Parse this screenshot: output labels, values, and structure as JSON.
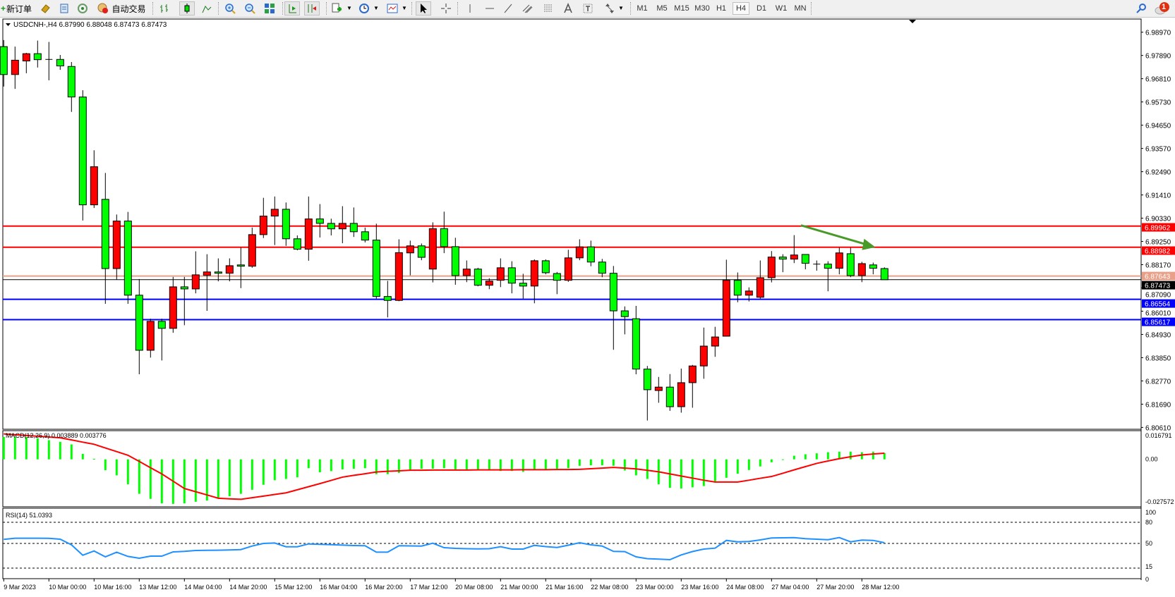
{
  "toolbar": {
    "new_order_label": "新订单",
    "auto_trading_label": "自动交易",
    "timeframes": [
      "M1",
      "M5",
      "M15",
      "M30",
      "H1",
      "H4",
      "D1",
      "W1",
      "MN"
    ],
    "active_timeframe": "H4",
    "notification_count": "1"
  },
  "chart": {
    "header": "USDCNH-,H4  6.87990 6.88048 6.87473 6.87473",
    "macd_label": "MACD(12,26,9) 0.003889 0.003776",
    "rsi_label": "RSI(14) 51.0393",
    "price_axis_labels": [
      "6.98970",
      "6.97890",
      "6.96810",
      "6.95730",
      "6.94650",
      "6.93570",
      "6.92490",
      "6.91410",
      "6.90330",
      "6.89250",
      "6.88170",
      "6.87090",
      "6.86010",
      "6.84930",
      "6.83850",
      "6.82770",
      "6.81690",
      "6.80610"
    ],
    "macd_axis_labels": [
      "0.016791",
      "0.00",
      "-0.027572"
    ],
    "rsi_axis_labels": [
      "100",
      "80",
      "50",
      "15",
      "0"
    ],
    "time_labels": [
      {
        "bar": 0,
        "text": "9 Mar 2023"
      },
      {
        "bar": 4,
        "text": "10 Mar 00:00"
      },
      {
        "bar": 8,
        "text": "10 Mar 16:00"
      },
      {
        "bar": 12,
        "text": "13 Mar 12:00"
      },
      {
        "bar": 16,
        "text": "14 Mar 04:00"
      },
      {
        "bar": 20,
        "text": "14 Mar 20:00"
      },
      {
        "bar": 24,
        "text": "15 Mar 12:00"
      },
      {
        "bar": 28,
        "text": "16 Mar 04:00"
      },
      {
        "bar": 32,
        "text": "16 Mar 20:00"
      },
      {
        "bar": 36,
        "text": "17 Mar 12:00"
      },
      {
        "bar": 40,
        "text": "20 Mar 08:00"
      },
      {
        "bar": 44,
        "text": "21 Mar 00:00"
      },
      {
        "bar": 48,
        "text": "21 Mar 16:00"
      },
      {
        "bar": 52,
        "text": "22 Mar 08:00"
      },
      {
        "bar": 56,
        "text": "23 Mar 00:00"
      },
      {
        "bar": 60,
        "text": "23 Mar 16:00"
      },
      {
        "bar": 64,
        "text": "24 Mar 08:00"
      },
      {
        "bar": 68,
        "text": "27 Mar 04:00"
      },
      {
        "bar": 72,
        "text": "27 Mar 20:00"
      },
      {
        "bar": 76,
        "text": "28 Mar 12:00"
      }
    ],
    "price_range": [
      6.80525,
      6.99582
    ],
    "macd_range": [
      -0.0293,
      0.0177
    ],
    "rsi_range": [
      0,
      100
    ],
    "rsi_levels": [
      80,
      50,
      15
    ],
    "colors": {
      "up_candle": "#ff0000",
      "down_candle": "#00ff00",
      "macd_hist": "#00ff00",
      "macd_signal": "#ff0000",
      "rsi": "#1e90ff",
      "arrow": "#4a9a2a"
    },
    "hlines": [
      {
        "price": "6.89962",
        "color": "#ff0000",
        "label_color": "#ffffff"
      },
      {
        "price": "6.88982",
        "color": "#ff0000",
        "label_color": "#ffffff"
      },
      {
        "price": "6.87643",
        "color": "#e8a088",
        "label_color": "#ffffff"
      },
      {
        "price": "6.87473",
        "color": "#000000",
        "label_color": "#ffffff",
        "current": true
      },
      {
        "price": "6.86564",
        "color": "#0000ff",
        "label_color": "#ffffff"
      },
      {
        "price": "6.85617",
        "color": "#0000ff",
        "label_color": "#ffffff"
      }
    ],
    "arrow": {
      "from": {
        "bar": 70.6,
        "price": 6.9
      },
      "to": {
        "bar": 77.2,
        "price": 6.88982
      }
    },
    "candles_ohlc": [
      [
        6.98301,
        6.98604,
        6.96445,
        6.97003
      ],
      [
        6.97003,
        6.98301,
        6.96336,
        6.9767
      ],
      [
        6.97633,
        6.9801,
        6.97063,
        6.97973
      ],
      [
        6.97973,
        6.9858,
        6.9733,
        6.97694
      ],
      [
        6.97706,
        6.98519,
        6.96736,
        6.977
      ],
      [
        6.97706,
        6.97912,
        6.97221,
        6.97403
      ],
      [
        6.97379,
        6.97585,
        6.95268,
        6.9596
      ],
      [
        6.9596,
        6.96275,
        6.90222,
        6.9095
      ],
      [
        6.9095,
        6.93485,
        6.90804,
        6.92721
      ],
      [
        6.91205,
        6.9243,
        6.86353,
        6.8799
      ],
      [
        6.8799,
        6.90501,
        6.87481,
        6.90198
      ],
      [
        6.90198,
        6.90622,
        6.86353,
        6.86753
      ],
      [
        6.86753,
        6.87505,
        6.83077,
        6.84194
      ],
      [
        6.84194,
        6.85661,
        6.83854,
        6.8554
      ],
      [
        6.8554,
        6.85661,
        6.8372,
        6.85212
      ],
      [
        6.85212,
        6.87602,
        6.85006,
        6.87141
      ],
      [
        6.87141,
        6.87602,
        6.85358,
        6.87044
      ],
      [
        6.87044,
        6.88791,
        6.86838,
        6.87699
      ],
      [
        6.87675,
        6.88657,
        6.86025,
        6.87833
      ],
      [
        6.87833,
        6.88463,
        6.87396,
        6.87772
      ],
      [
        6.87772,
        6.88463,
        6.87396,
        6.88124
      ],
      [
        6.8816,
        6.88973,
        6.8708,
        6.88099
      ],
      [
        6.88099,
        6.89895,
        6.88027,
        6.89567
      ],
      [
        6.89567,
        6.91277,
        6.89409,
        6.90428
      ],
      [
        6.90428,
        6.91338,
        6.89082,
        6.90744
      ],
      [
        6.90744,
        6.91059,
        6.89045,
        6.89373
      ],
      [
        6.89373,
        6.89531,
        6.88839,
        6.88888
      ],
      [
        6.88888,
        6.91338,
        6.88354,
        6.90295
      ],
      [
        6.90295,
        6.90986,
        6.89434,
        6.90089
      ],
      [
        6.90089,
        6.90307,
        6.89531,
        6.89834
      ],
      [
        6.89834,
        6.90889,
        6.89167,
        6.90089
      ],
      [
        6.90089,
        6.90828,
        6.89458,
        6.897
      ],
      [
        6.897,
        6.89895,
        6.89203,
        6.89312
      ],
      [
        6.89312,
        6.90076,
        6.86595,
        6.86692
      ],
      [
        6.86692,
        6.8742,
        6.85722,
        6.8651
      ],
      [
        6.8651,
        6.89349,
        6.86474,
        6.8873
      ],
      [
        6.88718,
        6.89288,
        6.87675,
        6.89045
      ],
      [
        6.89045,
        6.89155,
        6.88378,
        6.88512
      ],
      [
        6.87966,
        6.90137,
        6.87347,
        6.89846
      ],
      [
        6.89846,
        6.90634,
        6.88706,
        6.89009
      ],
      [
        6.89009,
        6.89421,
        6.87238,
        6.87663
      ],
      [
        6.87663,
        6.88366,
        6.87359,
        6.87966
      ],
      [
        6.87966,
        6.88027,
        6.87166,
        6.87214
      ],
      [
        6.87214,
        6.87541,
        6.87032,
        6.87408
      ],
      [
        6.87444,
        6.88463,
        6.87129,
        6.88027
      ],
      [
        6.88027,
        6.8833,
        6.86838,
        6.87311
      ],
      [
        6.87311,
        6.87748,
        6.86595,
        6.87177
      ],
      [
        6.87177,
        6.88415,
        6.86377,
        6.88354
      ],
      [
        6.88354,
        6.88415,
        6.87723,
        6.87796
      ],
      [
        6.8776,
        6.87833,
        6.86801,
        6.87444
      ],
      [
        6.87444,
        6.88863,
        6.87372,
        6.88487
      ],
      [
        6.88487,
        6.89349,
        6.88378,
        6.88997
      ],
      [
        6.88997,
        6.89288,
        6.88099,
        6.88293
      ],
      [
        6.88293,
        6.88439,
        6.8759,
        6.87772
      ],
      [
        6.87772,
        6.88111,
        6.84217,
        6.86025
      ],
      [
        6.86025,
        6.86231,
        6.84933,
        6.85758
      ],
      [
        6.85661,
        6.86256,
        6.83077,
        6.8332
      ],
      [
        6.8332,
        6.83466,
        6.8093,
        6.82362
      ],
      [
        6.82325,
        6.82956,
        6.81755,
        6.82483
      ],
      [
        6.82483,
        6.83089,
        6.81379,
        6.81573
      ],
      [
        6.81573,
        6.83344,
        6.81294,
        6.82689
      ],
      [
        6.82689,
        6.83514,
        6.81525,
        6.83466
      ],
      [
        6.83466,
        6.85249,
        6.82871,
        6.84388
      ],
      [
        6.84388,
        6.85285,
        6.8389,
        6.84812
      ],
      [
        6.84848,
        6.88402,
        6.84848,
        6.87444
      ],
      [
        6.87444,
        6.87808,
        6.86425,
        6.86753
      ],
      [
        6.86753,
        6.87117,
        6.86462,
        6.86947
      ],
      [
        6.86656,
        6.88366,
        6.86595,
        6.87566
      ],
      [
        6.87566,
        6.88803,
        6.87347,
        6.88524
      ],
      [
        6.88524,
        6.88657,
        6.87821,
        6.88427
      ],
      [
        6.88427,
        6.89543,
        6.88245,
        6.88621
      ],
      [
        6.88645,
        6.88645,
        6.87954,
        6.88233
      ],
      [
        6.88196,
        6.88366,
        6.87893,
        6.88196
      ],
      [
        6.88196,
        6.8833,
        6.86935,
        6.88002
      ],
      [
        6.88002,
        6.8896,
        6.87723,
        6.88718
      ],
      [
        6.88681,
        6.8896,
        6.8759,
        6.87663
      ],
      [
        6.87663,
        6.88305,
        6.87359,
        6.8822
      ],
      [
        6.8816,
        6.88269,
        6.87723,
        6.88002
      ],
      [
        6.8799,
        6.88048,
        6.87473,
        6.87473
      ]
    ],
    "macd_main": [
      0.0138,
      0.0138,
      0.0138,
      0.013,
      0.0118,
      0.0108,
      0.0092,
      0.0034,
      0.0003,
      -0.0067,
      -0.0099,
      -0.0154,
      -0.0213,
      -0.0244,
      -0.0272,
      -0.0275,
      -0.0272,
      -0.0262,
      -0.0255,
      -0.024,
      -0.0228,
      -0.0213,
      -0.0188,
      -0.0157,
      -0.0129,
      -0.0121,
      -0.0111,
      -0.0055,
      -0.008,
      -0.0073,
      -0.0062,
      -0.0058,
      -0.0055,
      -0.0092,
      -0.0092,
      -0.0084,
      -0.007,
      -0.0059,
      -0.0058,
      -0.0055,
      -0.0062,
      -0.0062,
      -0.0062,
      -0.0069,
      -0.0072,
      -0.0072,
      -0.0077,
      -0.0062,
      -0.0062,
      -0.0058,
      -0.0055,
      -0.004,
      -0.0037,
      -0.0037,
      -0.004,
      -0.0069,
      -0.0099,
      -0.0121,
      -0.0154,
      -0.0176,
      -0.018,
      -0.0173,
      -0.0165,
      -0.0136,
      -0.0114,
      -0.0089,
      -0.0066,
      -0.0044,
      -0.0018,
      -0.0003,
      0.0022,
      0.0031,
      0.0037,
      0.0044,
      0.0047,
      0.0047,
      0.0044,
      0.0047,
      0.003889
    ],
    "macd_signal": [
      0.0157,
      0.0152,
      0.0147,
      0.0143,
      0.0138,
      0.0133,
      0.012,
      0.0106,
      0.0093,
      0.007,
      0.0048,
      0.0025,
      -0.0013,
      -0.0052,
      -0.009,
      -0.0135,
      -0.018,
      -0.02,
      -0.022,
      -0.024,
      -0.0244,
      -0.0247,
      -0.0237,
      -0.0227,
      -0.0217,
      -0.0207,
      -0.0188,
      -0.0169,
      -0.015,
      -0.013,
      -0.011,
      -0.0099,
      -0.0089,
      -0.0078,
      -0.0074,
      -0.0071,
      -0.0067,
      -0.0067,
      -0.0066,
      -0.0066,
      -0.0066,
      -0.0066,
      -0.0065,
      -0.0065,
      -0.0065,
      -0.0065,
      -0.0064,
      -0.0064,
      -0.0064,
      -0.0063,
      -0.0063,
      -0.0062,
      -0.0058,
      -0.0054,
      -0.005,
      -0.0054,
      -0.0059,
      -0.0068,
      -0.0077,
      -0.009,
      -0.0103,
      -0.0116,
      -0.0129,
      -0.014,
      -0.014,
      -0.014,
      -0.0129,
      -0.0117,
      -0.0106,
      -0.0086,
      -0.0065,
      -0.0045,
      -0.0025,
      -0.001,
      0.0004,
      0.0016,
      0.0027,
      0.0033,
      0.003776
    ],
    "rsi": [
      55.7,
      57.4,
      57.4,
      57.4,
      57.2,
      56,
      48,
      33.3,
      39.3,
      31,
      37.6,
      31.6,
      29,
      32,
      32,
      38,
      38.7,
      40,
      40.2,
      40.4,
      40.8,
      41.3,
      46.3,
      50,
      50.6,
      45.3,
      45.3,
      49.3,
      48.7,
      48.2,
      47.6,
      47,
      46.7,
      37.6,
      37.6,
      46.7,
      46.5,
      46.3,
      50.3,
      44,
      43,
      42.5,
      42.3,
      42.5,
      45.3,
      42,
      42,
      47.3,
      45.5,
      44.3,
      47.5,
      51,
      48,
      46.3,
      38.7,
      38.4,
      31,
      28.4,
      27.8,
      27,
      33.7,
      38.5,
      42,
      43.3,
      54.3,
      52.3,
      52.8,
      55,
      57.7,
      58,
      58.3,
      56.7,
      56,
      55.3,
      58.3,
      52.3,
      54.7,
      54.3,
      51.0393
    ]
  }
}
